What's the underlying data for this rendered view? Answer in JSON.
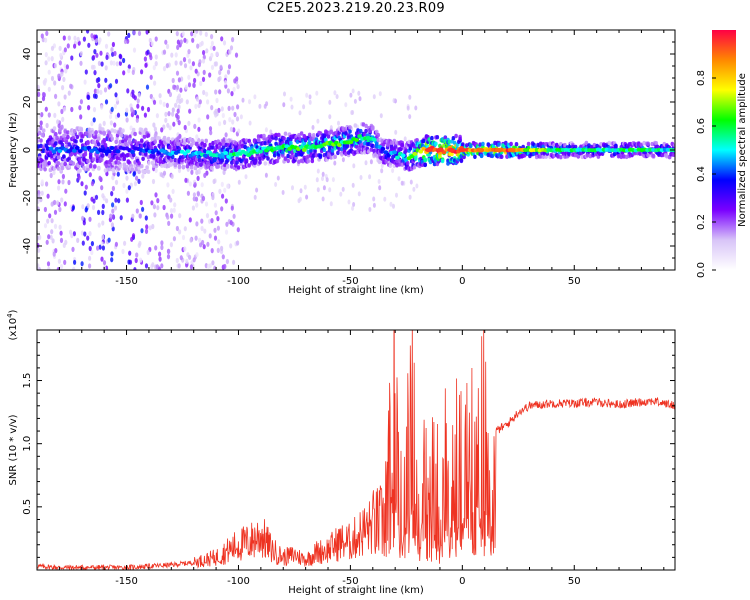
{
  "title": "C2E5.2023.219.20.23.R09",
  "colors": {
    "snr_line": "#ee3322",
    "spectrogram_low": "#b07ef0",
    "spectrogram_core": "#5a00ff"
  },
  "chart_data": [
    {
      "type": "heatmap",
      "name": "spectrogram",
      "xlabel": "Height of straight line (km)",
      "ylabel": "Frequency (Hz)",
      "xlim": [
        -190,
        95
      ],
      "ylim": [
        -50,
        50
      ],
      "xticks": [
        -150,
        -100,
        -50,
        0,
        50
      ],
      "yticks": [
        -40,
        -20,
        0,
        20,
        40
      ],
      "colorbar": {
        "label": "Normalized spectral amplitude",
        "range": [
          0,
          1
        ],
        "ticks": [
          "0.0",
          "0.2",
          "0.4",
          "0.6",
          "0.8"
        ],
        "colormap": [
          "#ffffff",
          "#d8c4f8",
          "#7a00ff",
          "#0000ff",
          "#00ffff",
          "#00ff00",
          "#ffff00",
          "#ff8800",
          "#ff0044"
        ]
      },
      "ridge": {
        "x": [
          -185,
          -170,
          -150,
          -130,
          -110,
          -100,
          -90,
          -80,
          -70,
          -60,
          -50,
          -45,
          -40,
          -38,
          -35,
          -30,
          -25,
          -20,
          -15,
          -10,
          0,
          10,
          20,
          40,
          60,
          80,
          95
        ],
        "y": [
          0,
          0,
          0,
          -1,
          -2,
          -2,
          0,
          1,
          1,
          2,
          4,
          5,
          4,
          2,
          -1,
          -2,
          -3,
          -1,
          0,
          0,
          0,
          0,
          0,
          0,
          0,
          0,
          0
        ],
        "amplitude": [
          0.4,
          0.4,
          0.35,
          0.45,
          0.5,
          0.55,
          0.55,
          0.6,
          0.6,
          0.6,
          0.6,
          0.55,
          0.55,
          0.45,
          0.4,
          0.45,
          0.55,
          0.7,
          0.95,
          0.95,
          0.9,
          0.85,
          0.9,
          0.55,
          0.55,
          0.55,
          0.5
        ]
      },
      "hotspots": [
        {
          "x": -15,
          "y": 0,
          "amplitude": 0.95
        },
        {
          "x": -10,
          "y": 0,
          "amplitude": 0.95
        },
        {
          "x": -5,
          "y": 0,
          "amplitude": 0.95
        },
        {
          "x": 0,
          "y": 0,
          "amplitude": 0.95
        },
        {
          "x": 8,
          "y": 0,
          "amplitude": 0.9
        },
        {
          "x": 16,
          "y": 0,
          "amplitude": 0.9
        },
        {
          "x": 22,
          "y": 0,
          "amplitude": 0.9
        }
      ]
    },
    {
      "type": "line",
      "name": "snr",
      "xlabel": "Height of straight line (km)",
      "ylabel": "SNR (10 * v/v)",
      "yscale_note": "(x10^4)",
      "xlim": [
        -190,
        95
      ],
      "ylim": [
        0,
        1.9
      ],
      "xticks": [
        -150,
        -100,
        -50,
        0,
        50
      ],
      "yticks": [
        0.5,
        1.0,
        1.5
      ],
      "ytick_labels": [
        "0.5",
        "1.0",
        "1.5"
      ],
      "series": [
        {
          "x": [
            -190,
            -180,
            -170,
            -160,
            -150,
            -140,
            -130,
            -120,
            -110,
            -105,
            -100,
            -95,
            -90,
            -85,
            -80,
            -75,
            -70,
            -65,
            -60,
            -55,
            -50,
            -45,
            -40,
            -35,
            -32,
            -30,
            -28,
            -25,
            -22,
            -20,
            -18,
            -15,
            -12,
            -10,
            -8,
            -5,
            -2,
            0,
            5,
            10,
            15,
            20,
            25,
            30,
            40,
            50,
            60,
            70,
            80,
            85,
            90,
            95
          ],
          "y": [
            0.03,
            0.02,
            0.02,
            0.02,
            0.02,
            0.03,
            0.04,
            0.06,
            0.1,
            0.15,
            0.2,
            0.22,
            0.28,
            0.16,
            0.1,
            0.12,
            0.08,
            0.14,
            0.16,
            0.22,
            0.22,
            0.3,
            0.35,
            0.38,
            0.9,
            1.9,
            0.7,
            0.8,
            1.2,
            0.6,
            0.8,
            0.5,
            0.9,
            0.4,
            0.85,
            0.7,
            0.9,
            0.8,
            0.95,
            1.05,
            1.1,
            1.15,
            1.25,
            1.3,
            1.32,
            1.32,
            1.33,
            1.31,
            1.33,
            1.34,
            1.32,
            1.3
          ]
        }
      ]
    }
  ]
}
